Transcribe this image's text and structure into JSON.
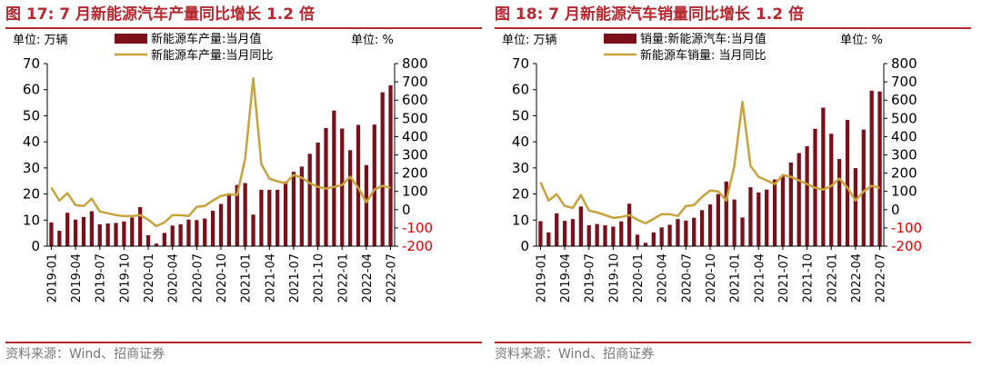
{
  "colors": {
    "accent": "#b5282e",
    "bar": "#7b0f1a",
    "line": "#c8a23c",
    "right_axis_negative": "#e60000",
    "source_text": "#777777"
  },
  "chart_data": [
    {
      "type": "bar",
      "title": "图 17:  7 月新能源汽车产量同比增长 1.2 倍",
      "left_unit": "单位:  万辆",
      "right_unit": "单位:  %",
      "source": "资料来源：Wind、招商证券",
      "legend_position": "top",
      "grid": false,
      "ylim_left": [
        0,
        70
      ],
      "yticks_left": [
        "0",
        "10",
        "20",
        "30",
        "40",
        "50",
        "60",
        "70"
      ],
      "ylim_right": [
        -200,
        800
      ],
      "yticks_right": [
        "-200",
        "-100",
        "0",
        "100",
        "200",
        "300",
        "400",
        "500",
        "600",
        "700",
        "800"
      ],
      "x": [
        "2019-01",
        "2019-02",
        "2019-03",
        "2019-04",
        "2019-05",
        "2019-06",
        "2019-07",
        "2019-08",
        "2019-09",
        "2019-10",
        "2019-11",
        "2019-12",
        "2020-01",
        "2020-02",
        "2020-03",
        "2020-04",
        "2020-05",
        "2020-06",
        "2020-07",
        "2020-08",
        "2020-09",
        "2020-10",
        "2020-11",
        "2020-12",
        "2021-01",
        "2021-02",
        "2021-03",
        "2021-04",
        "2021-05",
        "2021-06",
        "2021-07",
        "2021-08",
        "2021-09",
        "2021-10",
        "2021-11",
        "2021-12",
        "2022-01",
        "2022-02",
        "2022-03",
        "2022-04",
        "2022-05",
        "2022-06",
        "2022-07"
      ],
      "x_tick_labels": [
        "2019-01",
        "2019-04",
        "2019-07",
        "2019-10",
        "2020-01",
        "2020-04",
        "2020-07",
        "2020-10",
        "2021-01",
        "2021-04",
        "2021-07",
        "2021-10",
        "2022-01",
        "2022-04",
        "2022-07"
      ],
      "series": [
        {
          "name": "新能源车产量:当月值",
          "type": "bar",
          "axis": "left",
          "values": [
            9.1,
            5.9,
            12.8,
            10.2,
            11.2,
            13.4,
            8.4,
            8.7,
            8.9,
            9.5,
            11.0,
            15.0,
            4.2,
            1.0,
            5.1,
            7.9,
            8.4,
            10.2,
            10.0,
            10.6,
            13.6,
            16.2,
            19.5,
            23.5,
            24.2,
            12.1,
            21.6,
            21.6,
            21.6,
            24.8,
            28.5,
            30.5,
            35.4,
            39.7,
            45.3,
            52.0,
            45.1,
            36.8,
            46.5,
            31.1,
            46.6,
            59.0,
            61.7
          ]
        },
        {
          "name": "新能源车产量:当月同比",
          "type": "line",
          "axis": "right",
          "values": [
            120,
            50,
            90,
            25,
            20,
            60,
            -10,
            -20,
            -30,
            -35,
            -35,
            -30,
            -55,
            -90,
            -70,
            -30,
            -30,
            -35,
            15,
            20,
            50,
            75,
            85,
            80,
            280,
            720,
            250,
            170,
            155,
            145,
            190,
            175,
            145,
            125,
            115,
            125,
            135,
            180,
            120,
            40,
            110,
            130,
            120
          ]
        }
      ]
    },
    {
      "type": "bar",
      "title": "图 18:  7 月新能源汽车销量同比增长 1.2 倍",
      "left_unit": "单位:  万辆",
      "right_unit": "单位:  %",
      "source": "资料来源：Wind、招商证券",
      "legend_position": "top",
      "grid": false,
      "ylim_left": [
        0,
        70
      ],
      "yticks_left": [
        "0",
        "10",
        "20",
        "30",
        "40",
        "50",
        "60",
        "70"
      ],
      "ylim_right": [
        -200,
        800
      ],
      "yticks_right": [
        "-200",
        "-100",
        "0",
        "100",
        "200",
        "300",
        "400",
        "500",
        "600",
        "700",
        "800"
      ],
      "x": [
        "2019-01",
        "2019-02",
        "2019-03",
        "2019-04",
        "2019-05",
        "2019-06",
        "2019-07",
        "2019-08",
        "2019-09",
        "2019-10",
        "2019-11",
        "2019-12",
        "2020-01",
        "2020-02",
        "2020-03",
        "2020-04",
        "2020-05",
        "2020-06",
        "2020-07",
        "2020-08",
        "2020-09",
        "2020-10",
        "2020-11",
        "2020-12",
        "2021-01",
        "2021-02",
        "2021-03",
        "2021-04",
        "2021-05",
        "2021-06",
        "2021-07",
        "2021-08",
        "2021-09",
        "2021-10",
        "2021-11",
        "2021-12",
        "2022-01",
        "2022-02",
        "2022-03",
        "2022-04",
        "2022-05",
        "2022-06",
        "2022-07"
      ],
      "x_tick_labels": [
        "2019-01",
        "2019-04",
        "2019-07",
        "2019-10",
        "2020-01",
        "2020-04",
        "2020-07",
        "2020-10",
        "2021-01",
        "2021-04",
        "2021-07",
        "2021-10",
        "2022-01",
        "2022-04",
        "2022-07"
      ],
      "series": [
        {
          "name": "销量:新能源汽车:当月值",
          "type": "bar",
          "axis": "left",
          "values": [
            9.6,
            5.3,
            12.6,
            9.7,
            10.4,
            15.2,
            8.0,
            8.5,
            8.0,
            7.5,
            9.5,
            16.3,
            4.4,
            1.3,
            5.3,
            7.2,
            8.2,
            10.4,
            9.8,
            10.9,
            13.8,
            16.0,
            20.0,
            24.8,
            17.9,
            11.0,
            22.6,
            20.6,
            21.7,
            25.6,
            27.1,
            32.1,
            35.7,
            38.3,
            45.0,
            53.1,
            43.1,
            33.4,
            48.4,
            29.9,
            44.7,
            59.6,
            59.3
          ]
        },
        {
          "name": "新能源车销量:  当月同比",
          "type": "line",
          "axis": "right",
          "values": [
            150,
            50,
            85,
            20,
            10,
            80,
            -5,
            -15,
            -30,
            -45,
            -40,
            -30,
            -55,
            -75,
            -50,
            -25,
            -25,
            -35,
            20,
            25,
            70,
            105,
            100,
            50,
            240,
            590,
            240,
            180,
            160,
            140,
            190,
            180,
            160,
            140,
            120,
            110,
            130,
            170,
            120,
            50,
            100,
            130,
            120
          ]
        }
      ]
    }
  ]
}
